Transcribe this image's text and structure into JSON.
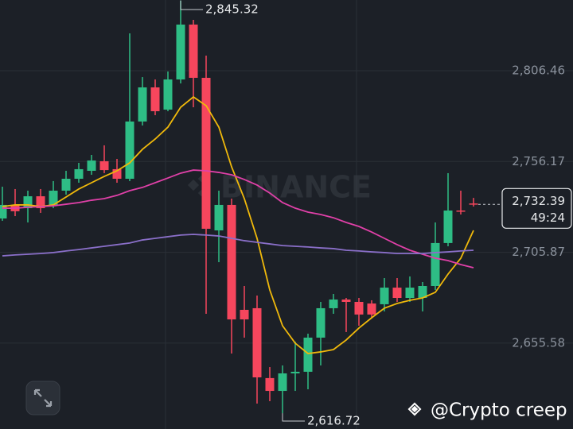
{
  "chart_data": {
    "type": "candlestick",
    "up_color": "#2ebd85",
    "down_color": "#f6465d",
    "ylim": [
      2608,
      2845.6
    ],
    "yticks": [
      {
        "value": 2806.46,
        "label": "2,806.46"
      },
      {
        "value": 2756.17,
        "label": "2,756.17"
      },
      {
        "value": 2705.87,
        "label": "2,705.87"
      },
      {
        "value": 2655.58,
        "label": "2,655.58"
      }
    ],
    "grid": true,
    "open": [
      2724.6,
      2732.1,
      2730.3,
      2736.9,
      2732.1,
      2740.0,
      2746.6,
      2751.0,
      2756.3,
      2751.9,
      2746.6,
      2778.3,
      2797.2,
      2784.9,
      2801.6,
      2832.0,
      2802.5,
      2718.0,
      2732.1,
      2674.0,
      2674.9,
      2636.2,
      2629.1,
      2638.8,
      2639.7,
      2658.6,
      2674.9,
      2679.7,
      2678.4,
      2677.5,
      2677.1,
      2686.3,
      2680.6,
      2680.6,
      2687.2,
      2711.0,
      2729.0,
      2732.9
    ],
    "high": [
      2742.2,
      2740.9,
      2740.0,
      2740.9,
      2745.3,
      2751.0,
      2755.4,
      2759.8,
      2765.1,
      2757.6,
      2827.1,
      2802.9,
      2801.6,
      2806.0,
      2845.32,
      2834.6,
      2814.8,
      2740.0,
      2735.6,
      2687.2,
      2681.9,
      2642.3,
      2643.2,
      2656.4,
      2660.8,
      2678.4,
      2682.8,
      2680.6,
      2680.6,
      2679.3,
      2691.6,
      2691.6,
      2692.5,
      2689.4,
      2722.4,
      2749.7,
      2740.0,
      2736.0
    ],
    "low": [
      2723.3,
      2725.9,
      2722.4,
      2727.7,
      2730.3,
      2737.8,
      2744.4,
      2748.8,
      2749.7,
      2744.4,
      2745.3,
      2776.1,
      2781.8,
      2784.0,
      2799.4,
      2786.2,
      2671.8,
      2700.4,
      2649.8,
      2658.6,
      2622.1,
      2623.4,
      2616.72,
      2629.1,
      2630.0,
      2643.2,
      2671.8,
      2661.7,
      2665.2,
      2669.6,
      2673.1,
      2678.4,
      2678.4,
      2673.1,
      2685.0,
      2709.2,
      2726.8,
      2731.2
    ],
    "close": [
      2732.1,
      2728.6,
      2736.9,
      2730.3,
      2740.0,
      2746.6,
      2751.9,
      2756.7,
      2751.4,
      2746.6,
      2778.3,
      2797.2,
      2784.0,
      2801.6,
      2832.0,
      2802.5,
      2718.9,
      2732.1,
      2668.7,
      2668.7,
      2636.6,
      2629.1,
      2638.8,
      2639.7,
      2658.6,
      2674.9,
      2679.7,
      2678.4,
      2671.4,
      2671.4,
      2686.3,
      2680.6,
      2686.3,
      2687.2,
      2711.0,
      2729.0,
      2728.6,
      2732.39
    ],
    "lines": [
      {
        "color": "#f0b90b",
        "values": [
          2731.2,
          2732.1,
          2732.1,
          2731.2,
          2732.1,
          2736.5,
          2740.9,
          2744.4,
          2747.9,
          2751.0,
          2755.4,
          2762.9,
          2768.6,
          2775.2,
          2786.2,
          2791.9,
          2787.1,
          2775.2,
          2753.2,
          2735.6,
          2713.6,
          2685.0,
          2665.2,
          2655.5,
          2649.8,
          2650.7,
          2652.0,
          2657.3,
          2663.9,
          2669.6,
          2674.9,
          2677.5,
          2679.3,
          2680.6,
          2683.7,
          2693.8,
          2702.6,
          2718.0
        ]
      },
      {
        "color": "#e040a8",
        "values": [
          2730.3,
          2730.3,
          2730.8,
          2731.2,
          2731.6,
          2732.5,
          2733.4,
          2734.7,
          2735.6,
          2737.4,
          2740.0,
          2741.8,
          2744.4,
          2747.0,
          2749.7,
          2751.4,
          2751.0,
          2750.1,
          2748.8,
          2746.2,
          2743.1,
          2738.7,
          2733.4,
          2730.3,
          2728.1,
          2726.8,
          2725.0,
          2722.4,
          2720.2,
          2717.1,
          2713.6,
          2710.1,
          2707.0,
          2704.8,
          2702.6,
          2701.3,
          2699.1,
          2697.3
        ]
      },
      {
        "color": "#8a6fc9",
        "values": [
          2703.9,
          2704.4,
          2704.8,
          2705.2,
          2705.7,
          2706.6,
          2707.4,
          2708.3,
          2709.2,
          2710.1,
          2711.0,
          2712.7,
          2713.6,
          2714.5,
          2715.4,
          2715.8,
          2715.4,
          2714.9,
          2713.6,
          2712.3,
          2711.4,
          2710.5,
          2709.6,
          2709.2,
          2708.8,
          2708.3,
          2707.9,
          2707.0,
          2706.6,
          2706.1,
          2705.7,
          2705.2,
          2705.2,
          2705.2,
          2705.7,
          2706.1,
          2706.6,
          2707.0
        ]
      }
    ],
    "high_annotation": {
      "value": 2845.32,
      "label": "2,845.32"
    },
    "low_annotation": {
      "value": 2616.72,
      "label": "2,616.72"
    },
    "current_price": {
      "value": 2732.39,
      "label": "2,732.39"
    },
    "countdown": "49:24",
    "watermark": "BINANCE",
    "credit": "@Crypto creep"
  }
}
